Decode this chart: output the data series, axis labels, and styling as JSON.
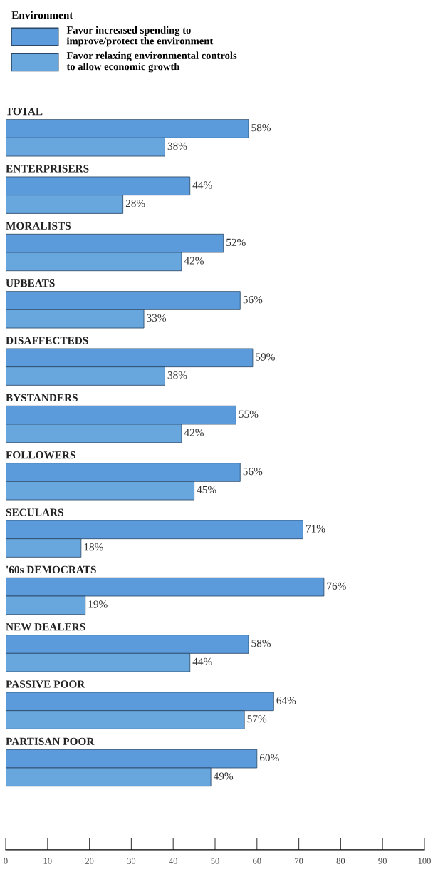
{
  "chart_data": {
    "type": "bar",
    "orientation": "horizontal",
    "legend_title": "Environment",
    "legend": "top left",
    "categories": [
      "TOTAL",
      "ENTERPRISERS",
      "MORALISTS",
      "UPBEATS",
      "DISAFFECTEDS",
      "BYSTANDERS",
      "FOLLOWERS",
      "SECULARS",
      "'60s DEMOCRATS",
      "NEW DEALERS",
      "PASSIVE POOR",
      "PARTISAN POOR"
    ],
    "series": [
      {
        "name": "Favor increased spending to\nimprove/protect the environment",
        "color": "#5b9bdc",
        "values": [
          58,
          44,
          52,
          56,
          59,
          55,
          56,
          71,
          76,
          58,
          64,
          60
        ],
        "value_labels": [
          "58%",
          "44%",
          "52%",
          "56%",
          "59%",
          "55%",
          "56%",
          "71%",
          "76%",
          "58%",
          "64%",
          "60%"
        ]
      },
      {
        "name": "Favor relaxing environmental controls\nto allow economic growth",
        "color": "#68a6de",
        "values": [
          38,
          28,
          42,
          33,
          38,
          42,
          45,
          18,
          19,
          44,
          57,
          49
        ],
        "value_labels": [
          "38%",
          "28%",
          "42%",
          "33%",
          "38%",
          "42%",
          "45%",
          "18%",
          "19%",
          "44%",
          "57%",
          "49%"
        ]
      }
    ],
    "xlim": [
      0,
      100
    ],
    "xticks": [
      0,
      10,
      20,
      30,
      40,
      50,
      60,
      70,
      80,
      90,
      100
    ],
    "grid": false
  }
}
